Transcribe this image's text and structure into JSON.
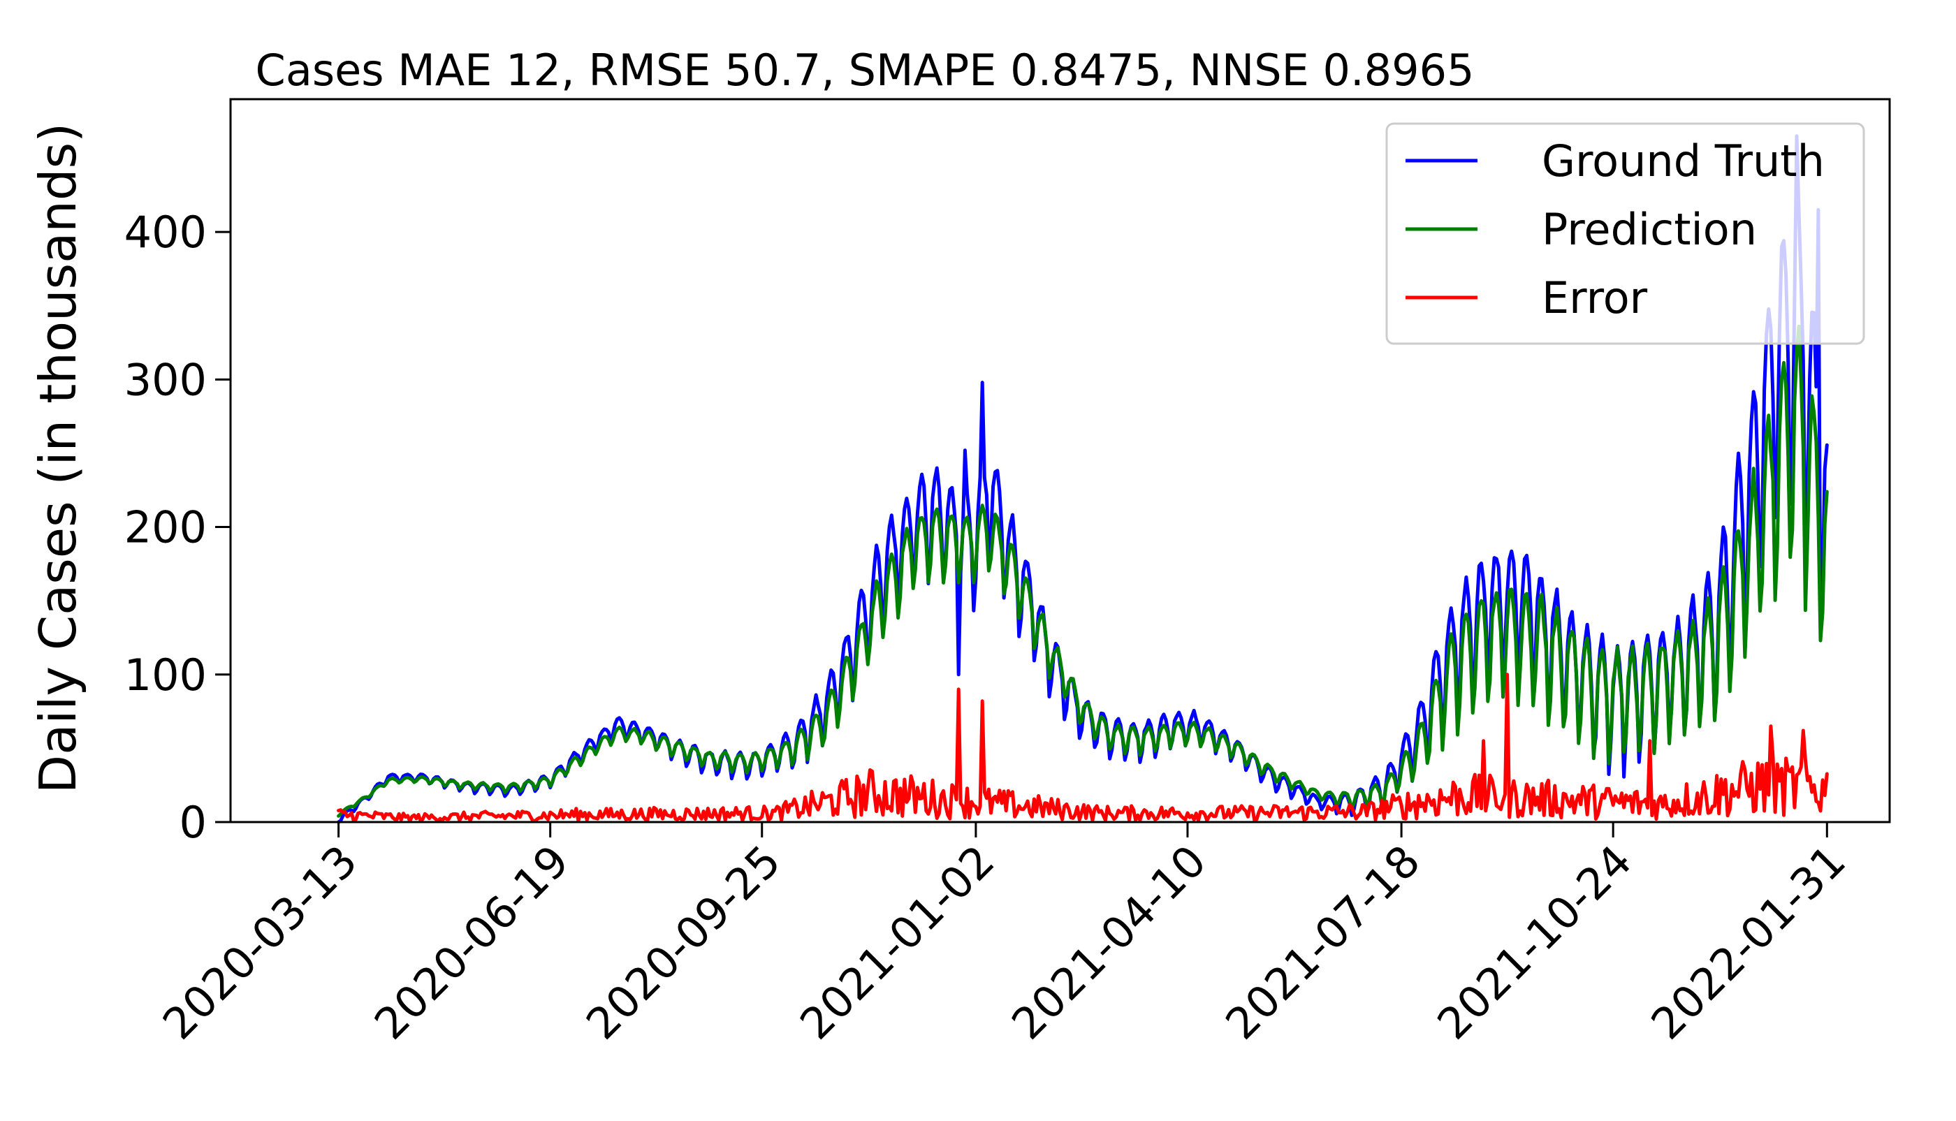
{
  "chart_data": {
    "type": "line",
    "title": "Cases MAE 12, RMSE 50.7, SMAPE 0.8475, NNSE 0.8965",
    "xlabel": "",
    "ylabel": "Daily Cases (in thousands)",
    "x_range": [
      "2020-03-13",
      "2022-01-31"
    ],
    "xlim": [
      "2020-01-23",
      "2022-03-01"
    ],
    "ylim": [
      0,
      490
    ],
    "x_ticks": [
      "2020-03-13",
      "2020-06-19",
      "2020-09-25",
      "2021-01-02",
      "2021-04-10",
      "2021-07-18",
      "2021-10-24",
      "2022-01-31"
    ],
    "y_ticks": [
      0,
      100,
      200,
      300,
      400
    ],
    "grid": false,
    "legend_position": "top-right",
    "weekly_cycle_period_days": 7,
    "series": [
      {
        "name": "Ground Truth",
        "color": "#0000ff",
        "note": "daily values; weekly oscillation around the trend",
        "trend": [
          [
            "2020-03-13",
            1
          ],
          [
            "2020-03-25",
            15
          ],
          [
            "2020-04-05",
            30
          ],
          [
            "2020-04-20",
            30
          ],
          [
            "2020-05-10",
            24
          ],
          [
            "2020-06-01",
            21
          ],
          [
            "2020-06-19",
            28
          ],
          [
            "2020-07-05",
            48
          ],
          [
            "2020-07-20",
            65
          ],
          [
            "2020-08-01",
            60
          ],
          [
            "2020-08-15",
            50
          ],
          [
            "2020-09-01",
            40
          ],
          [
            "2020-09-20",
            38
          ],
          [
            "2020-10-10",
            50
          ],
          [
            "2020-10-25",
            75
          ],
          [
            "2020-11-05",
            110
          ],
          [
            "2020-11-20",
            165
          ],
          [
            "2020-12-05",
            200
          ],
          [
            "2020-12-15",
            205
          ],
          [
            "2020-12-31",
            180
          ],
          [
            "2021-01-08",
            220
          ],
          [
            "2021-01-20",
            170
          ],
          [
            "2021-02-05",
            110
          ],
          [
            "2021-02-20",
            70
          ],
          [
            "2021-03-05",
            58
          ],
          [
            "2021-03-20",
            55
          ],
          [
            "2021-04-05",
            64
          ],
          [
            "2021-04-15",
            64
          ],
          [
            "2021-05-01",
            50
          ],
          [
            "2021-05-20",
            28
          ],
          [
            "2021-06-10",
            13
          ],
          [
            "2021-06-25",
            12
          ],
          [
            "2021-07-10",
            22
          ],
          [
            "2021-07-25",
            55
          ],
          [
            "2021-08-10",
            110
          ],
          [
            "2021-08-25",
            140
          ],
          [
            "2021-09-10",
            145
          ],
          [
            "2021-09-25",
            120
          ],
          [
            "2021-10-10",
            95
          ],
          [
            "2021-10-25",
            75
          ],
          [
            "2021-11-10",
            88
          ],
          [
            "2021-11-25",
            100
          ],
          [
            "2021-12-10",
            125
          ],
          [
            "2021-12-20",
            175
          ],
          [
            "2022-01-01",
            250
          ],
          [
            "2022-01-12",
            320
          ],
          [
            "2022-01-20",
            300
          ],
          [
            "2022-01-31",
            190
          ]
        ],
        "amplitude": [
          [
            "2020-03-13",
            2
          ],
          [
            "2020-06-01",
            4
          ],
          [
            "2020-10-01",
            10
          ],
          [
            "2020-11-20",
            35
          ],
          [
            "2021-01-10",
            40
          ],
          [
            "2021-02-20",
            15
          ],
          [
            "2021-04-10",
            12
          ],
          [
            "2021-06-10",
            4
          ],
          [
            "2021-07-18",
            15
          ],
          [
            "2021-08-15",
            45
          ],
          [
            "2021-10-01",
            45
          ],
          [
            "2021-11-25",
            40
          ],
          [
            "2022-01-01",
            80
          ],
          [
            "2022-01-20",
            120
          ],
          [
            "2022-01-31",
            90
          ]
        ],
        "spikes": [
          [
            "2020-12-25",
            100
          ],
          [
            "2020-12-28",
            252
          ],
          [
            "2021-01-05",
            298
          ],
          [
            "2022-01-10",
            390
          ],
          [
            "2022-01-17",
            465
          ],
          [
            "2022-01-27",
            415
          ]
        ]
      },
      {
        "name": "Prediction",
        "color": "#008000",
        "note": "smoothed version of ground truth with weaker weekly oscillation",
        "trend": [
          [
            "2020-03-13",
            5
          ],
          [
            "2020-03-25",
            16
          ],
          [
            "2020-04-05",
            28
          ],
          [
            "2020-04-20",
            29
          ],
          [
            "2020-05-10",
            25
          ],
          [
            "2020-06-01",
            23
          ],
          [
            "2020-06-19",
            28
          ],
          [
            "2020-07-05",
            45
          ],
          [
            "2020-07-20",
            60
          ],
          [
            "2020-08-01",
            58
          ],
          [
            "2020-08-15",
            50
          ],
          [
            "2020-09-01",
            42
          ],
          [
            "2020-09-20",
            40
          ],
          [
            "2020-10-10",
            48
          ],
          [
            "2020-10-25",
            68
          ],
          [
            "2020-11-05",
            100
          ],
          [
            "2020-11-20",
            150
          ],
          [
            "2020-12-05",
            185
          ],
          [
            "2020-12-15",
            190
          ],
          [
            "2020-12-31",
            185
          ],
          [
            "2021-01-08",
            195
          ],
          [
            "2021-01-20",
            165
          ],
          [
            "2021-02-05",
            115
          ],
          [
            "2021-02-20",
            75
          ],
          [
            "2021-03-05",
            58
          ],
          [
            "2021-03-20",
            55
          ],
          [
            "2021-04-05",
            60
          ],
          [
            "2021-04-15",
            60
          ],
          [
            "2021-05-01",
            50
          ],
          [
            "2021-05-20",
            32
          ],
          [
            "2021-06-10",
            18
          ],
          [
            "2021-06-25",
            15
          ],
          [
            "2021-07-10",
            20
          ],
          [
            "2021-07-25",
            45
          ],
          [
            "2021-08-10",
            95
          ],
          [
            "2021-08-25",
            120
          ],
          [
            "2021-09-10",
            125
          ],
          [
            "2021-09-25",
            110
          ],
          [
            "2021-10-10",
            90
          ],
          [
            "2021-10-25",
            80
          ],
          [
            "2021-11-10",
            85
          ],
          [
            "2021-11-25",
            95
          ],
          [
            "2021-12-10",
            115
          ],
          [
            "2021-12-20",
            150
          ],
          [
            "2022-01-01",
            200
          ],
          [
            "2022-01-12",
            250
          ],
          [
            "2022-01-20",
            250
          ],
          [
            "2022-01-31",
            170
          ]
        ],
        "amplitude": [
          [
            "2020-03-13",
            1
          ],
          [
            "2020-06-01",
            3
          ],
          [
            "2020-10-01",
            7
          ],
          [
            "2020-11-20",
            25
          ],
          [
            "2021-01-10",
            25
          ],
          [
            "2021-02-20",
            10
          ],
          [
            "2021-04-10",
            8
          ],
          [
            "2021-06-10",
            3
          ],
          [
            "2021-07-18",
            10
          ],
          [
            "2021-08-15",
            40
          ],
          [
            "2021-10-01",
            42
          ],
          [
            "2021-11-25",
            35
          ],
          [
            "2022-01-01",
            60
          ],
          [
            "2022-01-20",
            90
          ],
          [
            "2022-01-31",
            70
          ]
        ]
      },
      {
        "name": "Error",
        "color": "#ff0000",
        "note": "absolute difference between ground truth and prediction",
        "trend": [
          [
            "2020-03-13",
            5
          ],
          [
            "2020-04-15",
            3
          ],
          [
            "2020-07-01",
            5
          ],
          [
            "2020-10-01",
            6
          ],
          [
            "2020-11-15",
            20
          ],
          [
            "2020-12-20",
            15
          ],
          [
            "2021-01-15",
            12
          ],
          [
            "2021-03-01",
            6
          ],
          [
            "2021-05-01",
            6
          ],
          [
            "2021-07-01",
            7
          ],
          [
            "2021-08-15",
            18
          ],
          [
            "2021-10-01",
            15
          ],
          [
            "2021-11-15",
            12
          ],
          [
            "2022-01-01",
            25
          ],
          [
            "2022-01-31",
            22
          ]
        ],
        "spikes": [
          [
            "2020-12-25",
            90
          ],
          [
            "2021-01-05",
            82
          ],
          [
            "2021-08-25",
            55
          ],
          [
            "2021-09-05",
            100
          ],
          [
            "2021-11-10",
            55
          ],
          [
            "2022-01-05",
            65
          ],
          [
            "2022-01-20",
            62
          ]
        ]
      }
    ]
  }
}
